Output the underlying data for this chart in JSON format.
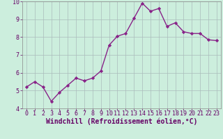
{
  "x": [
    0,
    1,
    2,
    3,
    4,
    5,
    6,
    7,
    8,
    9,
    10,
    11,
    12,
    13,
    14,
    15,
    16,
    17,
    18,
    19,
    20,
    21,
    22,
    23
  ],
  "y": [
    5.2,
    5.5,
    5.2,
    4.4,
    4.9,
    5.3,
    5.7,
    5.55,
    5.7,
    6.1,
    7.55,
    8.05,
    8.2,
    9.05,
    9.9,
    9.45,
    9.6,
    8.6,
    8.8,
    8.3,
    8.2,
    8.2,
    7.85,
    7.8
  ],
  "line_color": "#882288",
  "marker": "D",
  "marker_size": 2.2,
  "bg_color": "#cceedd",
  "grid_color": "#aabbbb",
  "xlabel": "Windchill (Refroidissement éolien,°C)",
  "xlabel_fontsize": 7,
  "xlim": [
    -0.5,
    23.5
  ],
  "ylim": [
    4,
    10
  ],
  "yticks": [
    4,
    5,
    6,
    7,
    8,
    9,
    10
  ],
  "xticks": [
    0,
    1,
    2,
    3,
    4,
    5,
    6,
    7,
    8,
    9,
    10,
    11,
    12,
    13,
    14,
    15,
    16,
    17,
    18,
    19,
    20,
    21,
    22,
    23
  ],
  "tick_fontsize": 6,
  "linewidth": 1.0
}
